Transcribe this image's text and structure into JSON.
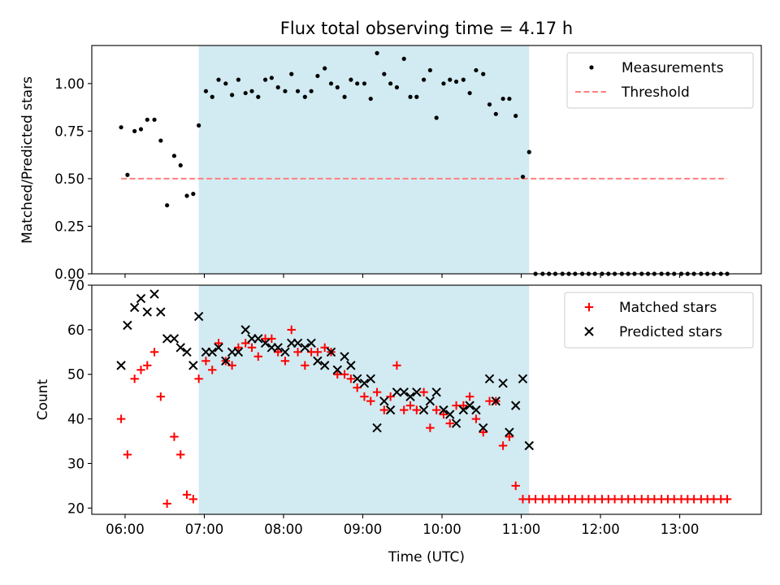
{
  "chart_data": {
    "title": "Flux total observing time = 4.17 h",
    "xlabel": "Time (UTC)",
    "x_ticks": [
      {
        "value": 6,
        "label": "06:00"
      },
      {
        "value": 7,
        "label": "07:00"
      },
      {
        "value": 8,
        "label": "08:00"
      },
      {
        "value": 9,
        "label": "09:00"
      },
      {
        "value": 10,
        "label": "10:00"
      },
      {
        "value": 11,
        "label": "11:00"
      },
      {
        "value": 12,
        "label": "12:00"
      },
      {
        "value": 13,
        "label": "13:00"
      }
    ],
    "xlim": [
      5.58,
      14.03
    ],
    "shaded_region": {
      "from": 6.93,
      "to": 11.1,
      "color": "#add8e6"
    },
    "panels": [
      {
        "type": "scatter",
        "ylabel": "Matched/Predicted stars",
        "ylim": [
          0,
          1.2
        ],
        "yticks": [
          {
            "value": 0,
            "label": "0.00"
          },
          {
            "value": 0.25,
            "label": "0.25"
          },
          {
            "value": 0.5,
            "label": "0.50"
          },
          {
            "value": 0.75,
            "label": "0.75"
          },
          {
            "value": 1.0,
            "label": "1.00"
          }
        ],
        "legend_position": "top-right",
        "series": [
          {
            "name": "Measurements",
            "marker": "dot",
            "color": "#000000",
            "x": [
              5.95,
              6.03,
              6.12,
              6.2,
              6.28,
              6.37,
              6.45,
              6.53,
              6.62,
              6.7,
              6.78,
              6.86,
              6.93,
              7.02,
              7.1,
              7.18,
              7.27,
              7.35,
              7.43,
              7.52,
              7.6,
              7.68,
              7.77,
              7.85,
              7.93,
              8.02,
              8.1,
              8.18,
              8.27,
              8.35,
              8.43,
              8.52,
              8.6,
              8.68,
              8.77,
              8.85,
              8.93,
              9.02,
              9.1,
              9.18,
              9.27,
              9.35,
              9.43,
              9.52,
              9.6,
              9.68,
              9.77,
              9.85,
              9.93,
              10.02,
              10.1,
              10.18,
              10.27,
              10.35,
              10.43,
              10.52,
              10.6,
              10.68,
              10.77,
              10.85,
              10.93,
              11.02,
              11.1,
              11.18,
              11.27,
              11.35,
              11.43,
              11.52,
              11.6,
              11.68,
              11.77,
              11.85,
              11.93,
              12.02,
              12.1,
              12.18,
              12.27,
              12.35,
              12.43,
              12.52,
              12.6,
              12.68,
              12.77,
              12.85,
              12.93,
              13.02,
              13.1,
              13.18,
              13.27,
              13.35,
              13.43,
              13.52,
              13.6
            ],
            "y": [
              0.77,
              0.52,
              0.75,
              0.76,
              0.81,
              0.81,
              0.7,
              0.36,
              0.62,
              0.57,
              0.41,
              0.42,
              0.78,
              0.96,
              0.93,
              1.02,
              1.0,
              0.94,
              1.02,
              0.95,
              0.96,
              0.93,
              1.02,
              1.03,
              0.98,
              0.96,
              1.05,
              0.96,
              0.93,
              0.96,
              1.04,
              1.08,
              1.0,
              0.98,
              0.93,
              1.02,
              1.0,
              1.0,
              0.92,
              1.16,
              1.05,
              1.0,
              0.98,
              1.13,
              0.93,
              0.93,
              1.02,
              1.07,
              0.82,
              1.0,
              1.02,
              1.01,
              1.02,
              0.95,
              1.07,
              1.05,
              0.89,
              0.84,
              0.92,
              0.92,
              0.83,
              0.51,
              0.64,
              0,
              0,
              0,
              0,
              0,
              0,
              0,
              0,
              0,
              0,
              0,
              0,
              0,
              0,
              0,
              0,
              0,
              0,
              0,
              0,
              0,
              0,
              0,
              0,
              0,
              0,
              0,
              0,
              0,
              0
            ]
          },
          {
            "name": "Threshold",
            "type": "line",
            "style": "dashed",
            "color": "#ff7f7f",
            "x": [
              5.95,
              13.6
            ],
            "y": [
              0.5,
              0.5
            ]
          }
        ]
      },
      {
        "type": "scatter",
        "ylabel": "Count",
        "ylim": [
          18.6,
          70
        ],
        "yticks": [
          {
            "value": 20,
            "label": "20"
          },
          {
            "value": 30,
            "label": "30"
          },
          {
            "value": 40,
            "label": "40"
          },
          {
            "value": 50,
            "label": "50"
          },
          {
            "value": 60,
            "label": "60"
          },
          {
            "value": 70,
            "label": "70"
          }
        ],
        "legend_position": "top-right",
        "series": [
          {
            "name": "Matched stars",
            "marker": "plus",
            "color": "#ff0000",
            "x": [
              5.95,
              6.03,
              6.12,
              6.2,
              6.28,
              6.37,
              6.45,
              6.53,
              6.62,
              6.7,
              6.78,
              6.86,
              6.93,
              7.02,
              7.1,
              7.18,
              7.27,
              7.35,
              7.43,
              7.52,
              7.6,
              7.68,
              7.77,
              7.85,
              7.93,
              8.02,
              8.1,
              8.18,
              8.27,
              8.35,
              8.43,
              8.52,
              8.6,
              8.68,
              8.77,
              8.85,
              8.93,
              9.02,
              9.1,
              9.18,
              9.27,
              9.35,
              9.43,
              9.52,
              9.6,
              9.68,
              9.77,
              9.85,
              9.93,
              10.02,
              10.1,
              10.18,
              10.27,
              10.35,
              10.43,
              10.52,
              10.6,
              10.68,
              10.77,
              10.85,
              10.93,
              11.02,
              11.1,
              11.18,
              11.27,
              11.35,
              11.43,
              11.52,
              11.6,
              11.68,
              11.77,
              11.85,
              11.93,
              12.02,
              12.1,
              12.18,
              12.27,
              12.35,
              12.43,
              12.52,
              12.6,
              12.68,
              12.77,
              12.85,
              12.93,
              13.02,
              13.1,
              13.18,
              13.27,
              13.35,
              13.43,
              13.52,
              13.6
            ],
            "y": [
              40,
              32,
              49,
              51,
              52,
              55,
              45,
              21,
              36,
              32,
              23,
              22,
              49,
              53,
              51,
              57,
              53,
              52,
              56,
              57,
              56,
              54,
              58,
              58,
              55,
              53,
              60,
              55,
              52,
              55,
              55,
              56,
              55,
              50,
              50,
              49,
              47,
              45,
              44,
              46,
              42,
              45,
              52,
              42,
              43,
              42,
              46,
              38,
              42,
              41,
              39,
              43,
              43,
              45,
              40,
              37,
              44,
              44,
              34,
              36,
              25,
              22,
              22,
              22,
              22,
              22,
              22,
              22,
              22,
              22,
              22,
              22,
              22,
              22,
              22,
              22,
              22,
              22,
              22,
              22,
              22,
              22,
              22,
              22,
              22,
              22,
              22,
              22,
              22,
              22,
              22,
              22,
              22
            ]
          },
          {
            "name": "Predicted stars",
            "marker": "x",
            "color": "#000000",
            "x": [
              5.95,
              6.03,
              6.12,
              6.2,
              6.28,
              6.37,
              6.45,
              6.53,
              6.62,
              6.7,
              6.78,
              6.86,
              6.93,
              7.02,
              7.1,
              7.18,
              7.27,
              7.35,
              7.43,
              7.52,
              7.6,
              7.68,
              7.77,
              7.85,
              7.93,
              8.02,
              8.1,
              8.18,
              8.27,
              8.35,
              8.43,
              8.52,
              8.6,
              8.68,
              8.77,
              8.85,
              8.93,
              9.02,
              9.1,
              9.18,
              9.27,
              9.35,
              9.43,
              9.52,
              9.6,
              9.68,
              9.77,
              9.85,
              9.93,
              10.02,
              10.1,
              10.18,
              10.27,
              10.35,
              10.43,
              10.52,
              10.6,
              10.68,
              10.77,
              10.85,
              10.93,
              11.02,
              11.1
            ],
            "y": [
              52,
              61,
              65,
              67,
              64,
              68,
              64,
              58,
              58,
              56,
              55,
              52,
              63,
              55,
              55,
              56,
              53,
              55,
              55,
              60,
              58,
              58,
              57,
              56,
              56,
              55,
              57,
              57,
              56,
              57,
              53,
              52,
              55,
              51,
              54,
              52,
              49,
              48,
              49,
              38,
              44,
              42,
              46,
              46,
              45,
              46,
              42,
              44,
              46,
              42,
              41,
              39,
              42,
              43,
              42,
              38,
              49,
              44,
              48,
              37,
              43,
              49,
              34
            ]
          }
        ]
      }
    ]
  }
}
